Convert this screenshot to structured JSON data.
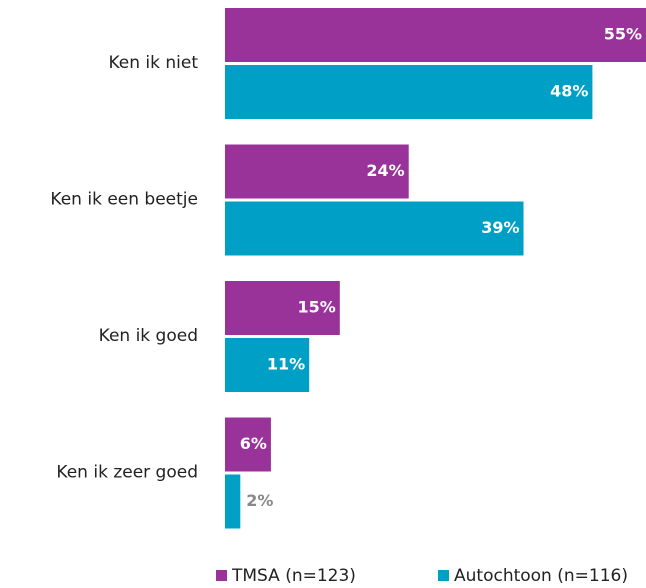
{
  "chart_data": {
    "type": "barh",
    "categories": [
      "Ken ik niet",
      "Ken ik een beetje",
      "Ken ik goed",
      "Ken ik zeer goed"
    ],
    "series": [
      {
        "name": "TMSA (n=123)",
        "color": "#993399",
        "values": [
          55,
          24,
          15,
          6
        ],
        "value_labels": [
          "55%",
          "24%",
          "15%",
          "6%"
        ]
      },
      {
        "name": "Autochtoon (n=116)",
        "color": "#00a0c6",
        "values": [
          48,
          39,
          11,
          2
        ],
        "value_labels": [
          "48%",
          "39%",
          "11%",
          "2%"
        ]
      }
    ],
    "legend": "bottom"
  }
}
